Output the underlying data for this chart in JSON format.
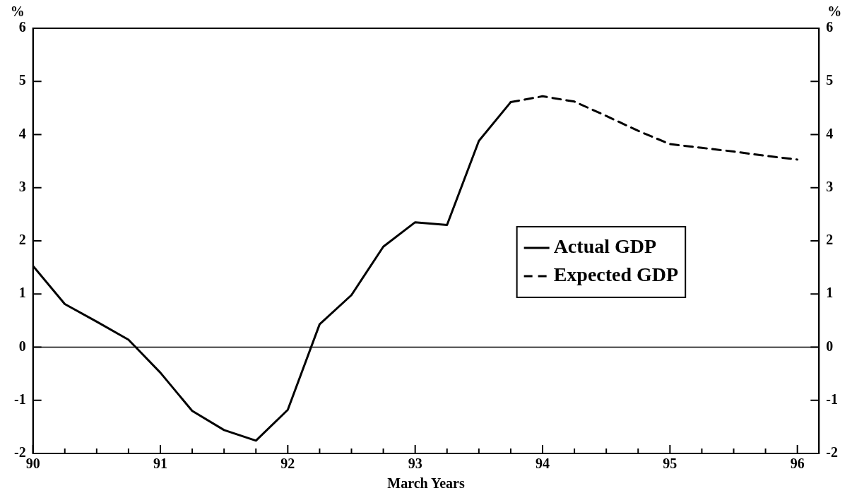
{
  "chart_data": {
    "type": "line",
    "xlabel": "March Years",
    "ylabel": "%",
    "y2label": "%",
    "series": [
      {
        "name": "Actual GDP",
        "color": "#000000",
        "line_style": "solid",
        "x": [
          90,
          90.25,
          90.5,
          90.75,
          91,
          91.25,
          91.5,
          91.75,
          92,
          92.25,
          92.5,
          92.75,
          93,
          93.25,
          93.5,
          93.75
        ],
        "values": [
          1.53,
          0.81,
          0.48,
          0.14,
          -0.48,
          -1.2,
          -1.56,
          -1.76,
          -1.18,
          0.43,
          0.98,
          1.89,
          2.35,
          2.3,
          3.88,
          4.61
        ]
      },
      {
        "name": "Expected GDP",
        "color": "#000000",
        "line_style": "dashed",
        "x": [
          93.75,
          94,
          94.25,
          94.5,
          94.75,
          95,
          95.25,
          95.5,
          95.75,
          96
        ],
        "values": [
          4.61,
          4.72,
          4.62,
          4.35,
          4.07,
          3.82,
          3.75,
          3.68,
          3.6,
          3.53
        ]
      }
    ],
    "xlim": [
      90,
      96.17
    ],
    "xticks": [
      90,
      {
        "value": 90.25,
        "label": null
      },
      {
        "value": 90.5,
        "label": null
      },
      {
        "value": 90.75,
        "label": null
      },
      91,
      {
        "value": 91.25,
        "label": null
      },
      {
        "value": 91.5,
        "label": null
      },
      {
        "value": 91.75,
        "label": null
      },
      92,
      {
        "value": 92.25,
        "label": null
      },
      {
        "value": 92.5,
        "label": null
      },
      {
        "value": 92.75,
        "label": null
      },
      93,
      {
        "value": 93.25,
        "label": null
      },
      {
        "value": 93.5,
        "label": null
      },
      {
        "value": 93.75,
        "label": null
      },
      94,
      {
        "value": 94.25,
        "label": null
      },
      {
        "value": 94.5,
        "label": null
      },
      {
        "value": 94.75,
        "label": null
      },
      95,
      {
        "value": 95.25,
        "label": null
      },
      {
        "value": 95.5,
        "label": null
      },
      {
        "value": 95.75,
        "label": null
      },
      96
    ],
    "ylim": [
      -2,
      6
    ],
    "yticks": [
      -2,
      -1,
      0,
      1,
      2,
      3,
      4,
      5,
      6
    ],
    "y2lim": [
      -2,
      6
    ],
    "y2ticks": [
      -2,
      -1,
      0,
      1,
      2,
      3,
      4,
      5,
      6
    ],
    "ref_lines": [
      {
        "axis": "y",
        "value": 0,
        "color": "#000000"
      }
    ],
    "legend": "center right",
    "grid": false,
    "marker": "none"
  }
}
